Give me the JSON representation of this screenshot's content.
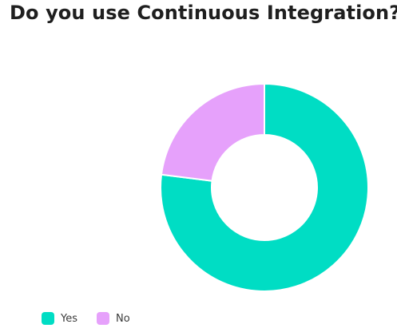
{
  "chart_data": {
    "type": "pie",
    "title": "Do you use Continuous Integration?",
    "categories": [
      "Yes",
      "No"
    ],
    "values": [
      77,
      23
    ],
    "colors": [
      "#00DDC4",
      "#E6A1FB"
    ],
    "donut": true,
    "legend_position": "bottom-left"
  }
}
